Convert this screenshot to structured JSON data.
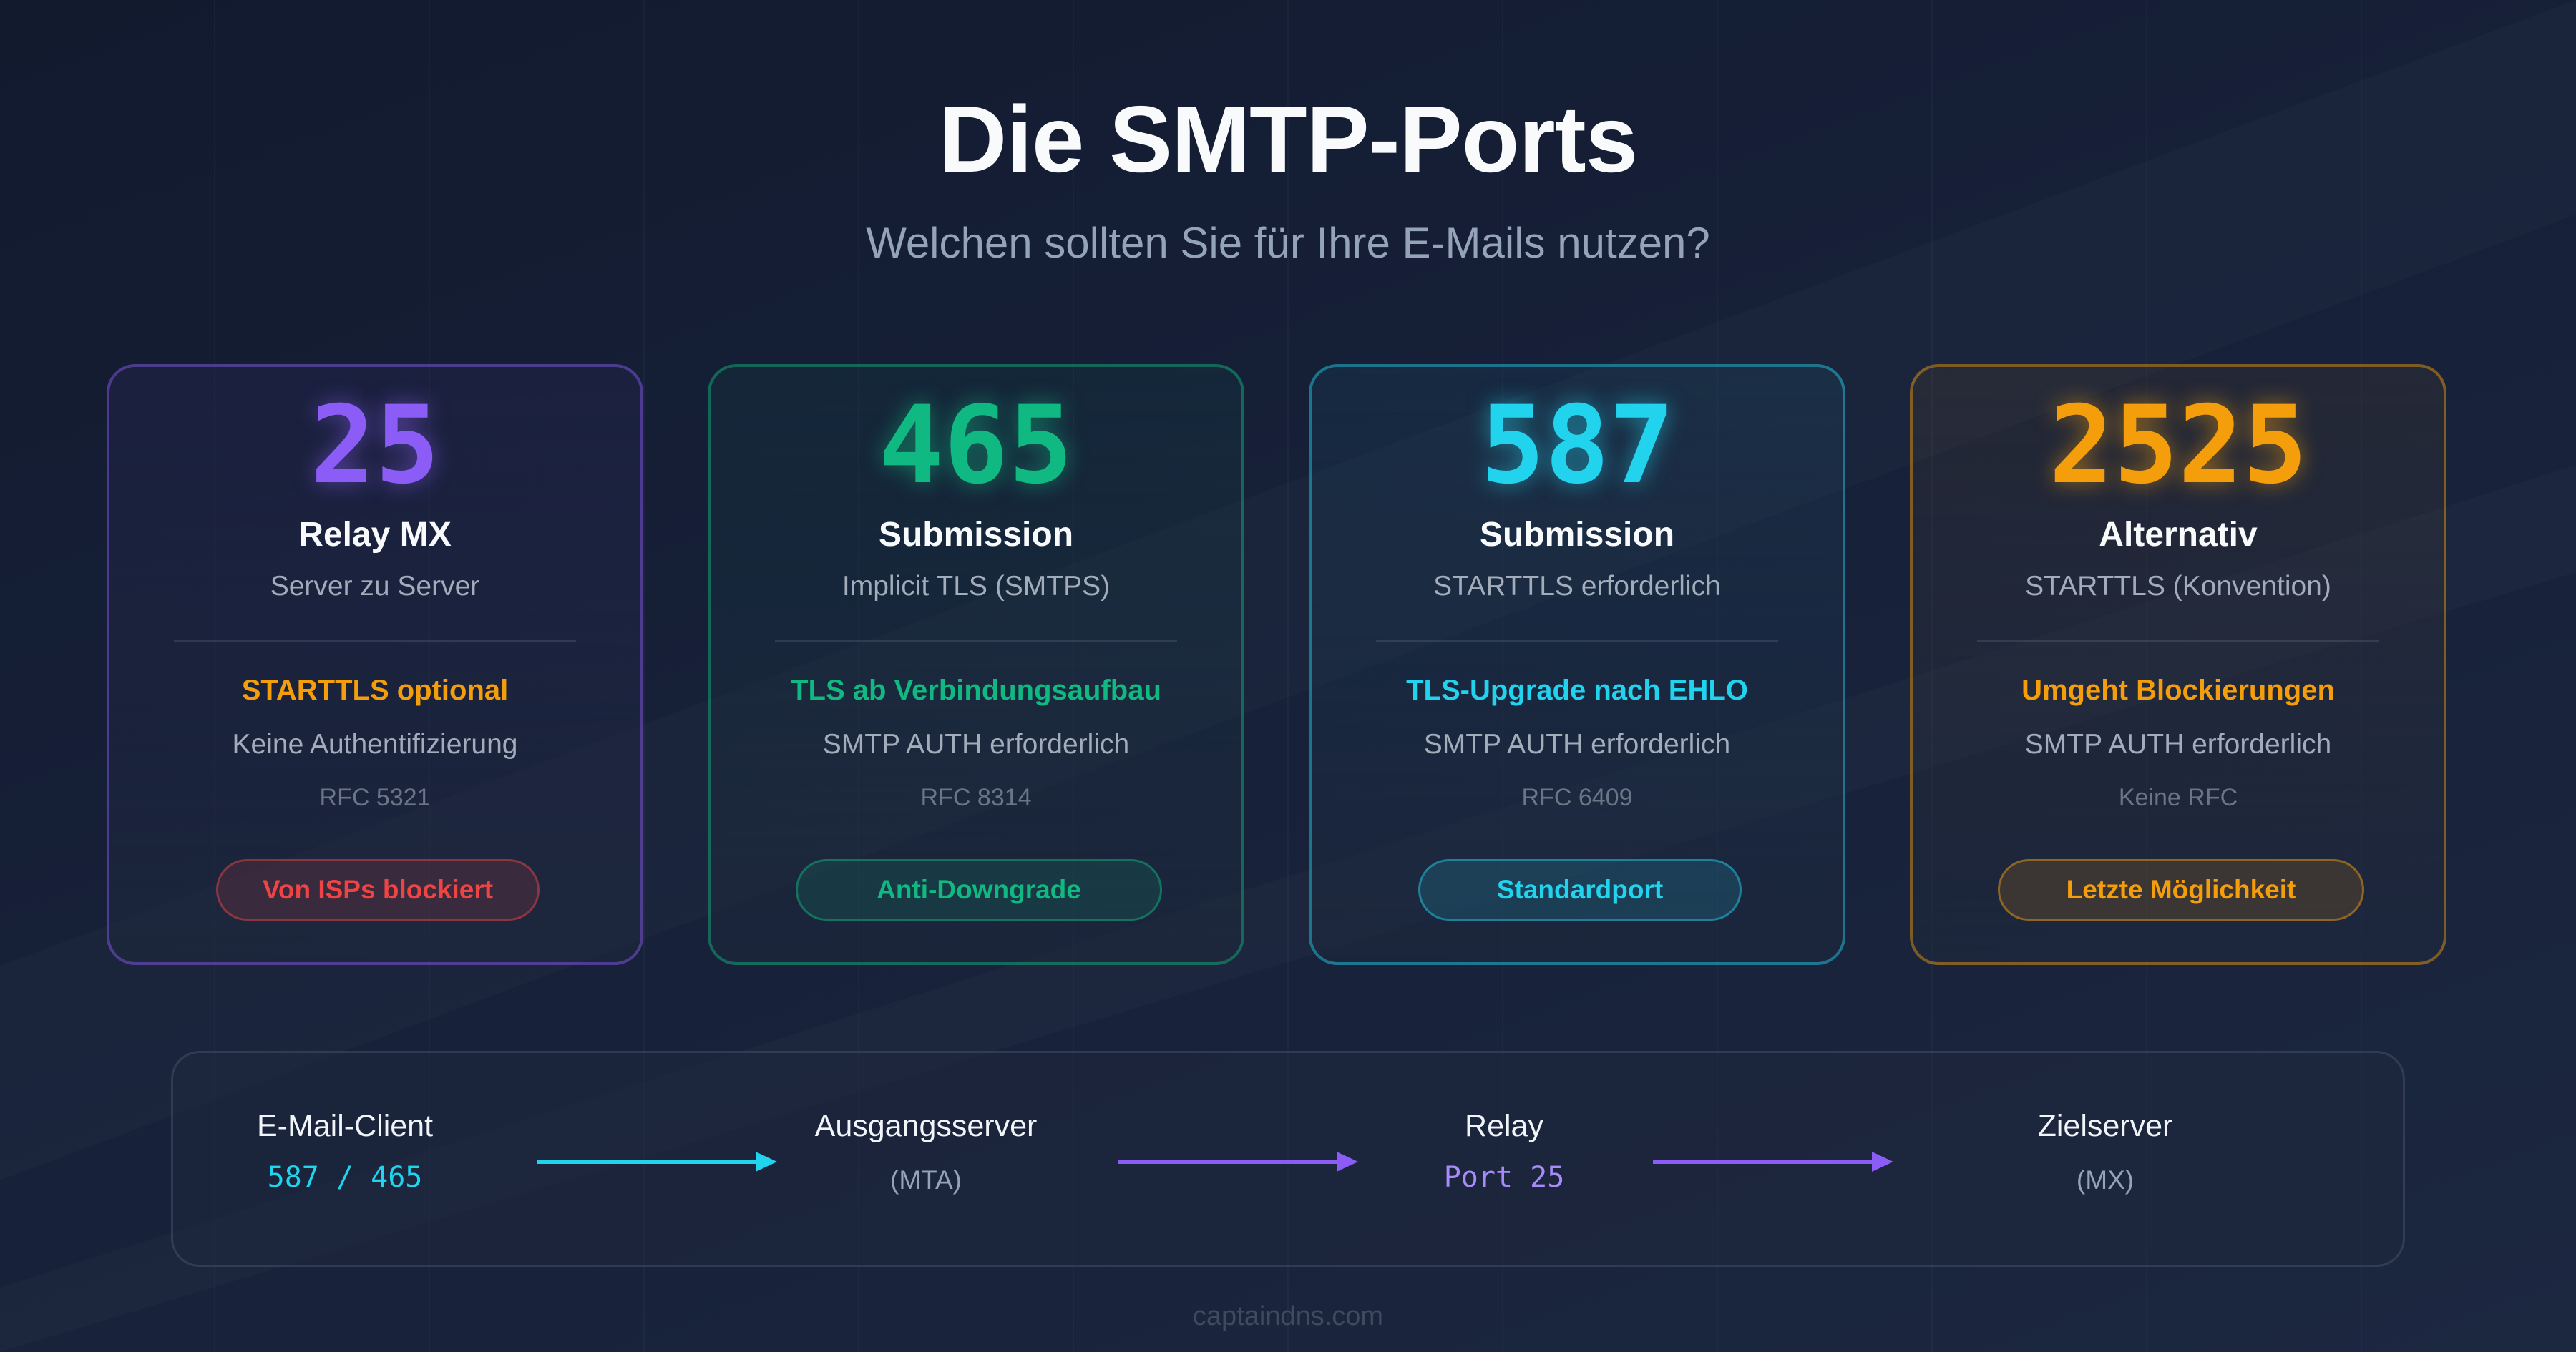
{
  "header": {
    "title": "Die SMTP-Ports",
    "subtitle": "Welchen sollten Sie für Ihre E-Mails nutzen?"
  },
  "cards": [
    {
      "port": "25",
      "name": "Relay MX",
      "sub": "Server zu Server",
      "feature": "STARTTLS optional",
      "auth": "Keine Authentifizierung",
      "rfc": "RFC 5321",
      "badge": "Von ISPs blockiert",
      "accent": "#8b5cf6",
      "feature_color": "#f59e0b",
      "badge_color": "#ef4444"
    },
    {
      "port": "465",
      "name": "Submission",
      "sub": "Implicit TLS (SMTPS)",
      "feature": "TLS ab Verbindungsaufbau",
      "auth": "SMTP AUTH erforderlich",
      "rfc": "RFC 8314",
      "badge": "Anti-Downgrade",
      "accent": "#10b981",
      "feature_color": "#10b981",
      "badge_color": "#10b981"
    },
    {
      "port": "587",
      "name": "Submission",
      "sub": "STARTTLS erforderlich",
      "feature": "TLS-Upgrade nach EHLO",
      "auth": "SMTP AUTH erforderlich",
      "rfc": "RFC 6409",
      "badge": "Standardport",
      "accent": "#22d3ee",
      "feature_color": "#22d3ee",
      "badge_color": "#22d3ee"
    },
    {
      "port": "2525",
      "name": "Alternativ",
      "sub": "STARTTLS (Konvention)",
      "feature": "Umgeht Blockierungen",
      "auth": "SMTP AUTH erforderlich",
      "rfc": "Keine RFC",
      "badge": "Letzte Möglichkeit",
      "accent": "#f59e0b",
      "feature_color": "#f59e0b",
      "badge_color": "#f59e0b"
    }
  ],
  "flow": {
    "nodes": [
      {
        "label": "E-Mail-Client",
        "sub": "587 / 465"
      },
      {
        "label": "Ausgangsserver",
        "sub": "(MTA)"
      },
      {
        "label": "Relay",
        "sub": "Port 25"
      },
      {
        "label": "Zielserver",
        "sub": "(MX)"
      }
    ],
    "arrow_colors": [
      "#22d3ee",
      "#8b5cf6",
      "#8b5cf6"
    ]
  },
  "footer": {
    "text": "captaindns.com"
  }
}
